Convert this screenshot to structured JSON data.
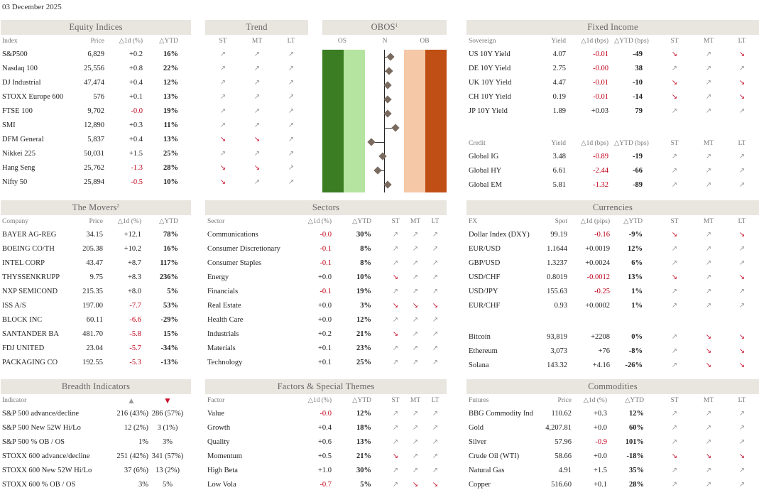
{
  "date": "03 December 2025",
  "equity": {
    "title": "Equity Indices",
    "cols": [
      "Index",
      "Price",
      "△1d (%)",
      "△YTD"
    ],
    "rows": [
      [
        "S&P500",
        "6,829",
        "+0.2",
        "16%"
      ],
      [
        "Nasdaq 100",
        "25,556",
        "+0.8",
        "22%"
      ],
      [
        "DJ Industrial",
        "47,474",
        "+0.4",
        "12%"
      ],
      [
        "STOXX Europe 600",
        "576",
        "+0.1",
        "13%"
      ],
      [
        "FTSE 100",
        "9,702",
        "-0.0",
        "19%"
      ],
      [
        "SMI",
        "12,890",
        "+0.3",
        "11%"
      ],
      [
        "DFM General",
        "5,837",
        "+0.4",
        "13%"
      ],
      [
        "Nikkei 225",
        "50,031",
        "+1.5",
        "25%"
      ],
      [
        "Hang Seng",
        "25,762",
        "-1.3",
        "28%"
      ],
      [
        "Nifty 50",
        "25,894",
        "-0.5",
        "10%"
      ]
    ]
  },
  "trend": {
    "title": "Trend",
    "cols": [
      "ST",
      "MT",
      "LT"
    ],
    "rows": [
      [
        "up",
        "up",
        "up"
      ],
      [
        "up",
        "up",
        "up"
      ],
      [
        "up",
        "up",
        "up"
      ],
      [
        "up",
        "up",
        "up"
      ],
      [
        "up",
        "up",
        "up"
      ],
      [
        "up",
        "up",
        "up"
      ],
      [
        "down",
        "down",
        "up"
      ],
      [
        "up",
        "up",
        "up"
      ],
      [
        "down",
        "down",
        "up"
      ],
      [
        "down",
        "up",
        "up"
      ]
    ]
  },
  "obos": {
    "title": "OBOS",
    "sup": "1",
    "labels": [
      "OS",
      "N",
      "OB"
    ],
    "values": [
      0.5,
      0.4,
      0.3,
      0.3,
      0.3,
      0.9,
      -1.0,
      -0.1,
      -0.5,
      0.3
    ]
  },
  "fixed": {
    "title": "Fixed Income",
    "cols": [
      "Sovereign",
      "Yield",
      "△1d (bps)",
      "△YTD (bps)",
      "ST",
      "MT",
      "LT"
    ],
    "rows": [
      [
        "US 10Y Yield",
        "4.07",
        "-0.01",
        "-49",
        "down",
        "up",
        "down"
      ],
      [
        "DE 10Y Yield",
        "2.75",
        "-0.00",
        "38",
        "up",
        "up",
        "up"
      ],
      [
        "UK 10Y Yield",
        "4.47",
        "-0.01",
        "-10",
        "down",
        "up",
        "down"
      ],
      [
        "CH 10Y Yield",
        "0.19",
        "-0.01",
        "-14",
        "down",
        "up",
        "down"
      ],
      [
        "JP 10Y Yield",
        "1.89",
        "+0.03",
        "79",
        "up",
        "up",
        "up"
      ]
    ],
    "cols2": [
      "Credit",
      "Yield",
      "△1d (bps)",
      "△YTD (bps)",
      "ST",
      "MT",
      "LT"
    ],
    "rows2": [
      [
        "Global IG",
        "3.48",
        "-0.89",
        "-19",
        "up",
        "up",
        "up"
      ],
      [
        "Global HY",
        "6.61",
        "-2.44",
        "-66",
        "up",
        "up",
        "up"
      ],
      [
        "Global EM",
        "5.81",
        "-1.32",
        "-89",
        "up",
        "up",
        "up"
      ]
    ]
  },
  "movers": {
    "title": "The Movers",
    "sup": "2",
    "cols": [
      "Company",
      "Price",
      "△1d (%)",
      "△YTD"
    ],
    "rows": [
      [
        "BAYER AG-REG",
        "34.15",
        "+12.1",
        "78%"
      ],
      [
        "BOEING CO/TH",
        "205.38",
        "+10.2",
        "16%"
      ],
      [
        "INTEL CORP",
        "43.47",
        "+8.7",
        "117%"
      ],
      [
        "THYSSENKRUPP",
        "9.75",
        "+8.3",
        "236%"
      ],
      [
        "NXP SEMICOND",
        "215.35",
        "+8.0",
        "5%"
      ],
      [
        "ISS A/S",
        "197.00",
        "-7.7",
        "53%"
      ],
      [
        "BLOCK INC",
        "60.11",
        "-6.6",
        "-29%"
      ],
      [
        "SANTANDER BA",
        "481.70",
        "-5.8",
        "15%"
      ],
      [
        "FDJ UNITED",
        "23.04",
        "-5.7",
        "-34%"
      ],
      [
        "PACKAGING CO",
        "192.55",
        "-5.3",
        "-13%"
      ]
    ]
  },
  "sectors": {
    "title": "Sectors",
    "cols": [
      "Sector",
      "△1d (%)",
      "△YTD",
      "ST",
      "MT",
      "LT"
    ],
    "rows": [
      [
        "Communications",
        "-0.0",
        "30%",
        "up",
        "up",
        "up"
      ],
      [
        "Consumer Discretionary",
        "-0.1",
        "8%",
        "up",
        "up",
        "up"
      ],
      [
        "Consumer Staples",
        "-0.1",
        "8%",
        "up",
        "up",
        "up"
      ],
      [
        "Energy",
        "+0.0",
        "10%",
        "down",
        "up",
        "up"
      ],
      [
        "Financials",
        "-0.1",
        "19%",
        "up",
        "up",
        "up"
      ],
      [
        "Real Estate",
        "+0.0",
        "3%",
        "down",
        "down",
        "down"
      ],
      [
        "Health Care",
        "+0.0",
        "12%",
        "up",
        "up",
        "up"
      ],
      [
        "Industrials",
        "+0.2",
        "21%",
        "down",
        "up",
        "up"
      ],
      [
        "Materials",
        "+0.1",
        "23%",
        "up",
        "up",
        "up"
      ],
      [
        "Technology",
        "+0.1",
        "25%",
        "up",
        "up",
        "up"
      ]
    ]
  },
  "currencies": {
    "title": "Currencies",
    "cols": [
      "FX",
      "Spot",
      "△1d (pips)",
      "△YTD",
      "ST",
      "MT",
      "LT"
    ],
    "rows": [
      [
        "Dollar Index (DXY)",
        "99.19",
        "-0.16",
        "-9%",
        "down",
        "up",
        "down"
      ],
      [
        "EUR/USD",
        "1.1644",
        "+0.0019",
        "12%",
        "up",
        "up",
        "up"
      ],
      [
        "GBP/USD",
        "1.3237",
        "+0.0024",
        "6%",
        "up",
        "up",
        "up"
      ],
      [
        "USD/CHF",
        "0.8019",
        "-0.0012",
        "13%",
        "down",
        "up",
        "down"
      ],
      [
        "USD/JPY",
        "155.63",
        "-0.25",
        "1%",
        "up",
        "up",
        "up"
      ],
      [
        "EUR/CHF",
        "0.93",
        "+0.0002",
        "1%",
        "up",
        "up",
        "up"
      ]
    ],
    "rows2": [
      [
        "Bitcoin",
        "93,819",
        "+2208",
        "0%",
        "up",
        "down",
        "down"
      ],
      [
        "Ethereum",
        "3,073",
        "+76",
        "-8%",
        "up",
        "down",
        "down"
      ],
      [
        "Solana",
        "143.32",
        "+4.16",
        "-26%",
        "up",
        "down",
        "down"
      ]
    ]
  },
  "breadth": {
    "title": "Breadth Indicators",
    "cols": [
      "Indicator",
      "▲",
      "▼"
    ],
    "rows": [
      [
        "S&P 500 advance/decline",
        "216 (43%)",
        "286 (57%)"
      ],
      [
        "S&P 500 New 52W Hi/Lo",
        "12 (2%)",
        "3 (1%)"
      ],
      [
        "S&P 500 % OB / OS",
        "1%",
        "3%"
      ],
      [
        "STOXX 600 advance/decline",
        "251 (42%)",
        "341 (57%)"
      ],
      [
        "STOXX 600 New 52W Hi/Lo",
        "37 (6%)",
        "13 (2%)"
      ],
      [
        "STOXX 600 % OB / OS",
        "3%",
        "5%"
      ]
    ]
  },
  "factors": {
    "title": "Factors & Special Themes",
    "cols": [
      "Factor",
      "△1d (%)",
      "△YTD",
      "ST",
      "MT",
      "LT"
    ],
    "rows": [
      [
        "Value",
        "-0.0",
        "12%",
        "up",
        "up",
        "up"
      ],
      [
        "Growth",
        "+0.4",
        "18%",
        "up",
        "up",
        "up"
      ],
      [
        "Quality",
        "+0.6",
        "13%",
        "up",
        "up",
        "up"
      ],
      [
        "Momentum",
        "+0.5",
        "21%",
        "down",
        "up",
        "up"
      ],
      [
        "High Beta",
        "+1.0",
        "30%",
        "up",
        "up",
        "up"
      ],
      [
        "Low Vola",
        "-0.7",
        "5%",
        "up",
        "down",
        "down"
      ]
    ]
  },
  "commodities": {
    "title": "Commodities",
    "cols": [
      "Futures",
      "Price",
      "△1d (%)",
      "△YTD",
      "ST",
      "MT",
      "LT"
    ],
    "rows": [
      [
        "BBG Commodity Ind",
        "110.62",
        "+0.3",
        "12%",
        "up",
        "up",
        "up"
      ],
      [
        "Gold",
        "4,207.81",
        "+0.0",
        "60%",
        "up",
        "up",
        "up"
      ],
      [
        "Silver",
        "57.96",
        "-0.9",
        "101%",
        "up",
        "up",
        "up"
      ],
      [
        "Crude Oil (WTI)",
        "58.66",
        "+0.0",
        "-18%",
        "down",
        "down",
        "down"
      ],
      [
        "Natural Gas",
        "4.91",
        "+1.5",
        "35%",
        "up",
        "up",
        "up"
      ],
      [
        "Copper",
        "516.60",
        "+0.1",
        "28%",
        "up",
        "up",
        "up"
      ]
    ]
  },
  "colors": {
    "neg": "#c00018",
    "down_arrow": "#c8102e",
    "up_arrow": "#999999",
    "header_bg": "#e9e5df",
    "os_dark": "#3a7d22",
    "os_light": "#b5e3a0",
    "ob_light": "#f5c8a8",
    "ob_dark": "#c04f16"
  }
}
